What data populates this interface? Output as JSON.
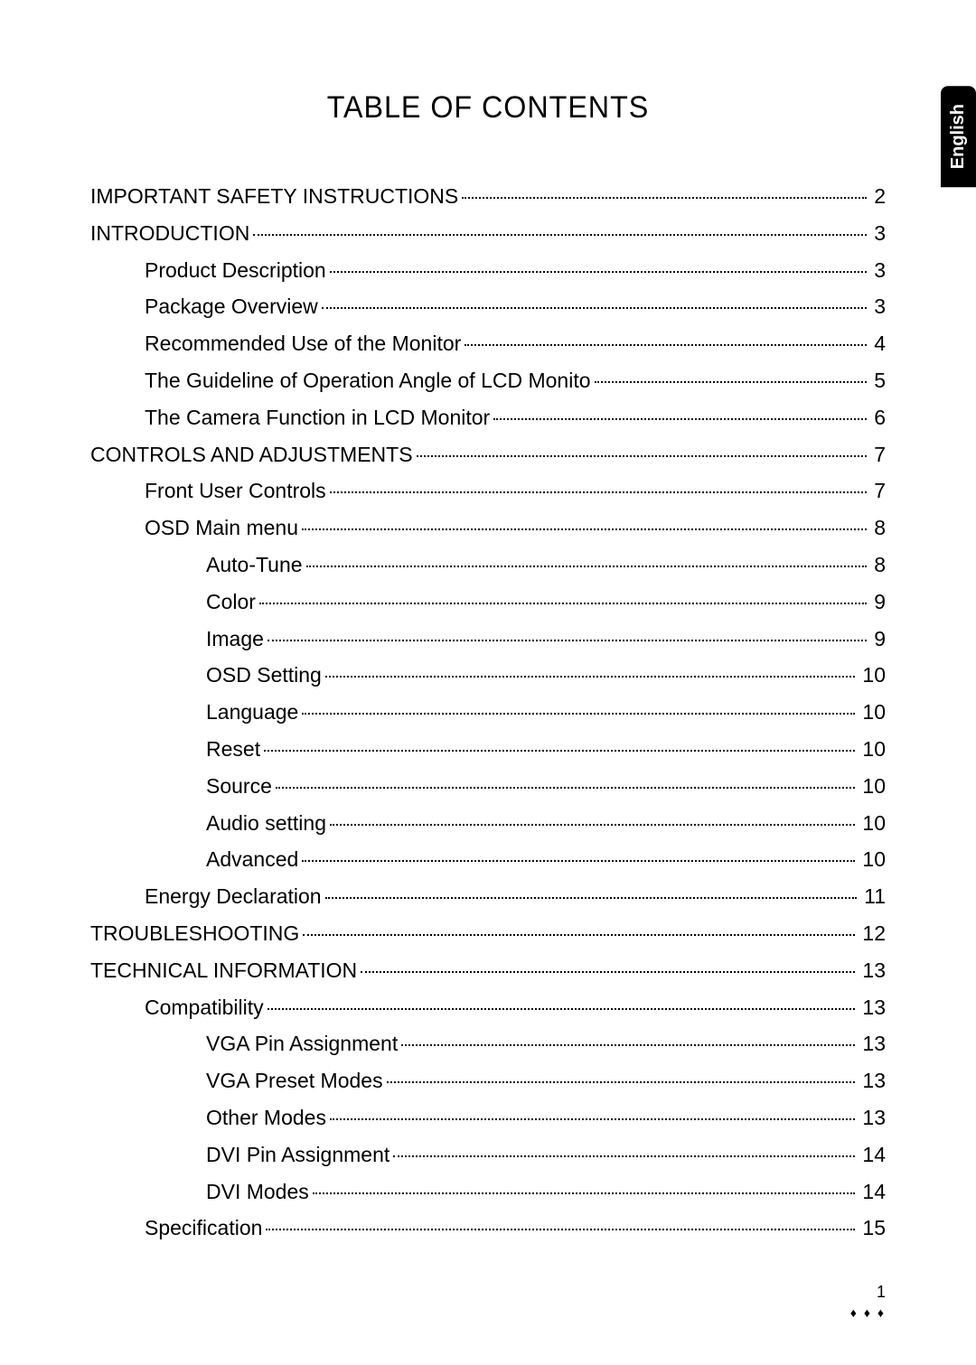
{
  "languageTab": "English",
  "title": "TABLE OF CONTENTS",
  "entries": [
    {
      "level": 0,
      "label": "IMPORTANT SAFETY INSTRUCTIONS",
      "page": "2"
    },
    {
      "level": 0,
      "label": "INTRODUCTION",
      "page": "3"
    },
    {
      "level": 1,
      "label": "Product Description",
      "page": "3"
    },
    {
      "level": 1,
      "label": "Package Overview",
      "page": "3"
    },
    {
      "level": 1,
      "label": "Recommended Use of the Monitor",
      "page": "4"
    },
    {
      "level": 1,
      "label": "The Guideline of Operation Angle of LCD Monito",
      "page": "5"
    },
    {
      "level": 1,
      "label": "The Camera Function in LCD Monitor",
      "page": "6"
    },
    {
      "level": 0,
      "label": "CONTROLS AND ADJUSTMENTS",
      "page": "7"
    },
    {
      "level": 1,
      "label": "Front User Controls",
      "page": "7"
    },
    {
      "level": 1,
      "label": "OSD Main menu",
      "page": "8"
    },
    {
      "level": 2,
      "label": "Auto-Tune",
      "page": "8"
    },
    {
      "level": 2,
      "label": "Color",
      "page": "9"
    },
    {
      "level": 2,
      "label": "Image",
      "page": "9"
    },
    {
      "level": 2,
      "label": "OSD Setting",
      "page": "10"
    },
    {
      "level": 2,
      "label": "Language",
      "page": "10"
    },
    {
      "level": 2,
      "label": "Reset",
      "page": "10"
    },
    {
      "level": 2,
      "label": "Source",
      "page": "10"
    },
    {
      "level": 2,
      "label": "Audio setting",
      "page": "10"
    },
    {
      "level": 2,
      "label": "Advanced",
      "page": "10"
    },
    {
      "level": 1,
      "label": "Energy Declaration",
      "page": "11"
    },
    {
      "level": 0,
      "label": "TROUBLESHOOTING",
      "page": "12"
    },
    {
      "level": 0,
      "label": "TECHNICAL INFORMATION",
      "page": "13"
    },
    {
      "level": 1,
      "label": "Compatibility",
      "page": "13"
    },
    {
      "level": 2,
      "label": "VGA Pin Assignment",
      "page": "13"
    },
    {
      "level": 2,
      "label": "VGA Preset Modes",
      "page": "13"
    },
    {
      "level": 2,
      "label": "Other Modes",
      "page": "13"
    },
    {
      "level": 2,
      "label": "DVI Pin Assignment",
      "page": "14"
    },
    {
      "level": 2,
      "label": "DVI Modes",
      "page": "14"
    },
    {
      "level": 1,
      "label": "Specification",
      "page": "15"
    }
  ],
  "footer": {
    "pageNumber": "1",
    "decoration": "♦ ♦ ♦"
  },
  "styling": {
    "background_color": "#ffffff",
    "text_color": "#000000",
    "tab_bg_color": "#000000",
    "tab_text_color": "#ffffff",
    "title_fontsize": 34,
    "body_fontsize": 23,
    "footer_fontsize": 18
  }
}
